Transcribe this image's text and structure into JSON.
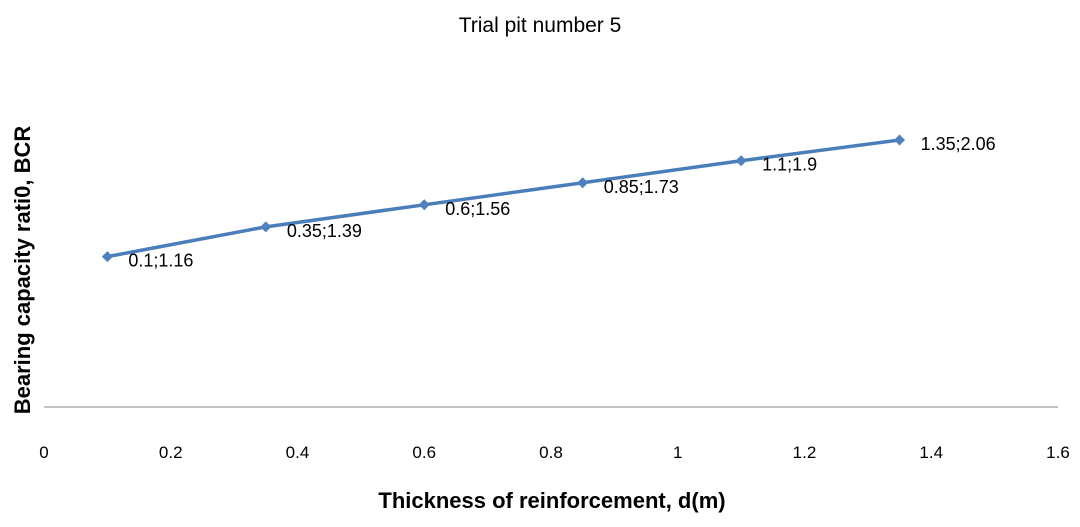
{
  "chart_data": {
    "type": "line",
    "title": "Trial pit number 5",
    "xlabel": "Thickness of reinforcement, d(m)",
    "ylabel": "Bearing capacity rati0, BCR",
    "xlim": [
      0,
      1.6
    ],
    "ylim": [
      0,
      2.6
    ],
    "x_ticks": [
      "0",
      "0.2",
      "0.4",
      "0.6",
      "0.8",
      "1",
      "1.2",
      "1.4",
      "1.6"
    ],
    "y_axis_tick_labels_visible": false,
    "grid": false,
    "legend": "none",
    "series": [
      {
        "color": "#4a7ebb",
        "marker_color": "#4f81bd",
        "x": [
          0.1,
          0.35,
          0.6,
          0.85,
          1.1,
          1.35
        ],
        "y": [
          1.16,
          1.39,
          1.56,
          1.73,
          1.9,
          2.06
        ],
        "labels": [
          "0.1;1.16",
          "0.35;1.39",
          "0.6;1.56",
          "0.85;1.73",
          "1.1;1.9",
          "1.35;2.06"
        ]
      }
    ]
  }
}
